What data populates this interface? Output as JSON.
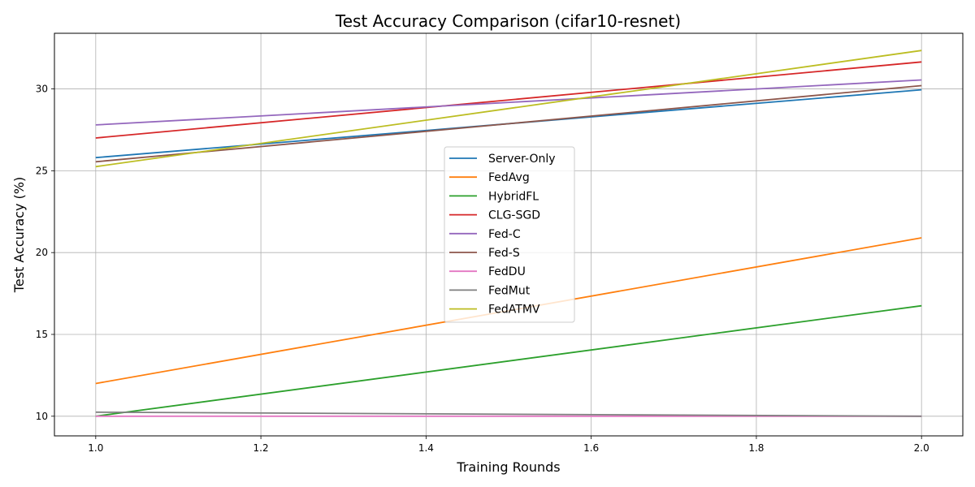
{
  "chart_data": {
    "type": "line",
    "title": "Test Accuracy Comparison (cifar10-resnet)",
    "xlabel": "Training Rounds",
    "ylabel": "Test Accuracy (%)",
    "xlim": [
      0.95,
      2.05
    ],
    "ylim": [
      8.8,
      33.4
    ],
    "xticks": [
      1.0,
      1.2,
      1.4,
      1.6,
      1.8,
      2.0
    ],
    "xtick_labels": [
      "1.0",
      "1.2",
      "1.4",
      "1.6",
      "1.8",
      "2.0"
    ],
    "yticks": [
      10,
      15,
      20,
      25,
      30
    ],
    "ytick_labels": [
      "10",
      "15",
      "20",
      "25",
      "30"
    ],
    "grid": true,
    "legend_position": "center",
    "x": [
      1,
      2
    ],
    "series": [
      {
        "name": "Server-Only",
        "color": "#1f77b4",
        "values": [
          25.8,
          29.95
        ]
      },
      {
        "name": "FedAvg",
        "color": "#ff7f0e",
        "values": [
          12.0,
          20.9
        ]
      },
      {
        "name": "HybridFL",
        "color": "#2ca02c",
        "values": [
          10.0,
          16.75
        ]
      },
      {
        "name": "CLG-SGD",
        "color": "#d62728",
        "values": [
          27.0,
          31.65
        ]
      },
      {
        "name": "Fed-C",
        "color": "#9467bd",
        "values": [
          27.8,
          30.55
        ]
      },
      {
        "name": "Fed-S",
        "color": "#8c564b",
        "values": [
          25.55,
          30.2
        ]
      },
      {
        "name": "FedDU",
        "color": "#e377c2",
        "values": [
          10.0,
          10.0
        ]
      },
      {
        "name": "FedMut",
        "color": "#7f7f7f",
        "values": [
          10.25,
          10.0
        ]
      },
      {
        "name": "FedATMV",
        "color": "#bcbd22",
        "values": [
          25.25,
          32.35
        ]
      }
    ]
  }
}
